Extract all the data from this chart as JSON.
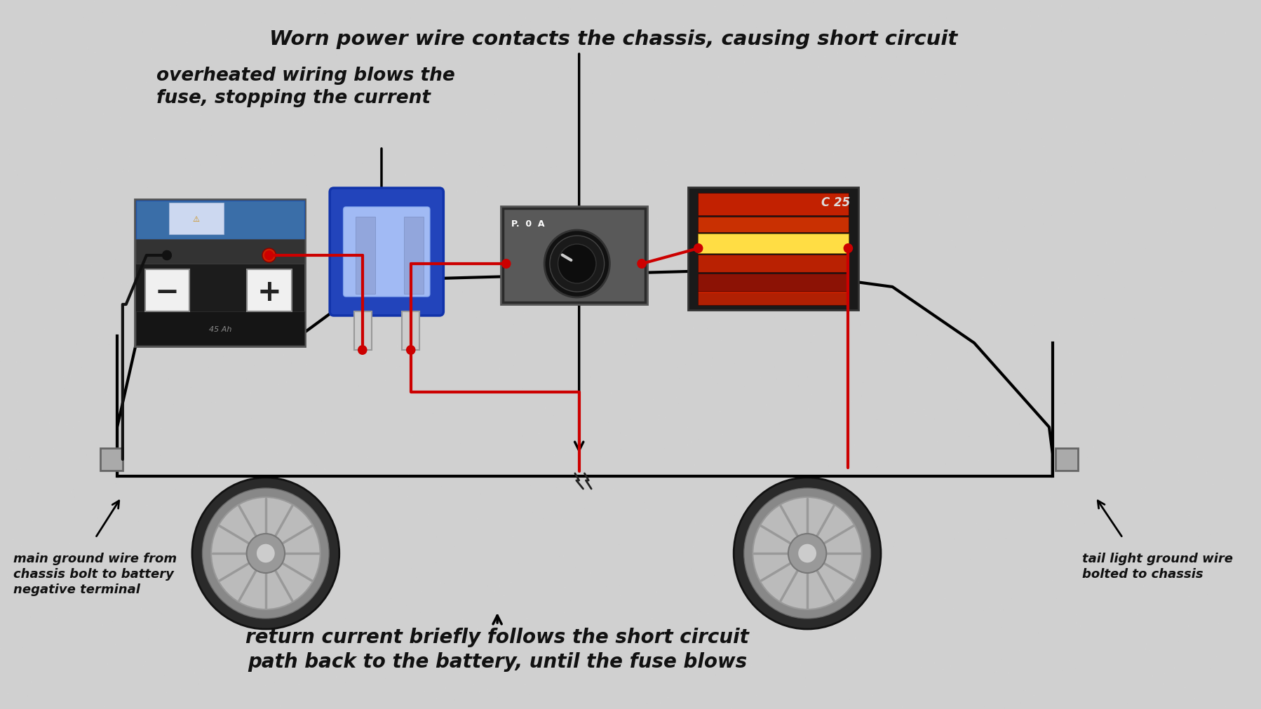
{
  "bg_color": "#d0d0d0",
  "text_color": "#111111",
  "title_line1": "Worn power wire contacts the chassis, causing short circuit",
  "title_line2": "overheated wiring blows the\nfuse, stopping the current",
  "bottom_text": "return current briefly follows the short circuit\npath back to the battery, until the fuse blows",
  "label_ground": "main ground wire from\nchassis bolt to battery\nnegative terminal",
  "label_tail": "tail light ground wire\nbolted to chassis",
  "wire_red": "#cc0000",
  "wire_black": "#111111",
  "chassis_color": "#111111"
}
